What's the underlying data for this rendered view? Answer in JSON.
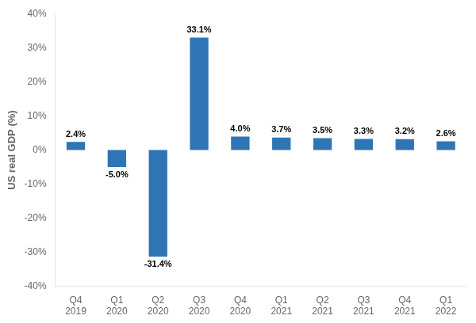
{
  "chart_data": {
    "type": "bar",
    "categories": [
      "Q4\n2019",
      "Q1\n2020",
      "Q2\n2020",
      "Q3\n2020",
      "Q4\n2020",
      "Q1\n2021",
      "Q2\n2021",
      "Q3\n2021",
      "Q4\n2021",
      "Q1\n2022"
    ],
    "values": [
      2.4,
      -5.0,
      -31.4,
      33.1,
      4.0,
      3.7,
      3.5,
      3.3,
      3.2,
      2.6
    ],
    "value_labels": [
      "2.4%",
      "-5.0%",
      "-31.4%",
      "33.1%",
      "4.0%",
      "3.7%",
      "3.5%",
      "3.3%",
      "3.2%",
      "2.6%"
    ],
    "data_labels": true,
    "color": "#2e75b6",
    "ylabel": "US real GDP (%)",
    "ylim": [
      -40,
      40
    ],
    "yticks": [
      {
        "value": -40,
        "label": "-40%"
      },
      {
        "value": -30,
        "label": "-30%"
      },
      {
        "value": -20,
        "label": "-20%"
      },
      {
        "value": -10,
        "label": "-10%"
      },
      {
        "value": 0,
        "label": "0%"
      },
      {
        "value": 10,
        "label": "10%"
      },
      {
        "value": 20,
        "label": "20%"
      },
      {
        "value": 30,
        "label": "30%"
      },
      {
        "value": 40,
        "label": "40%"
      }
    ],
    "grid": false
  }
}
